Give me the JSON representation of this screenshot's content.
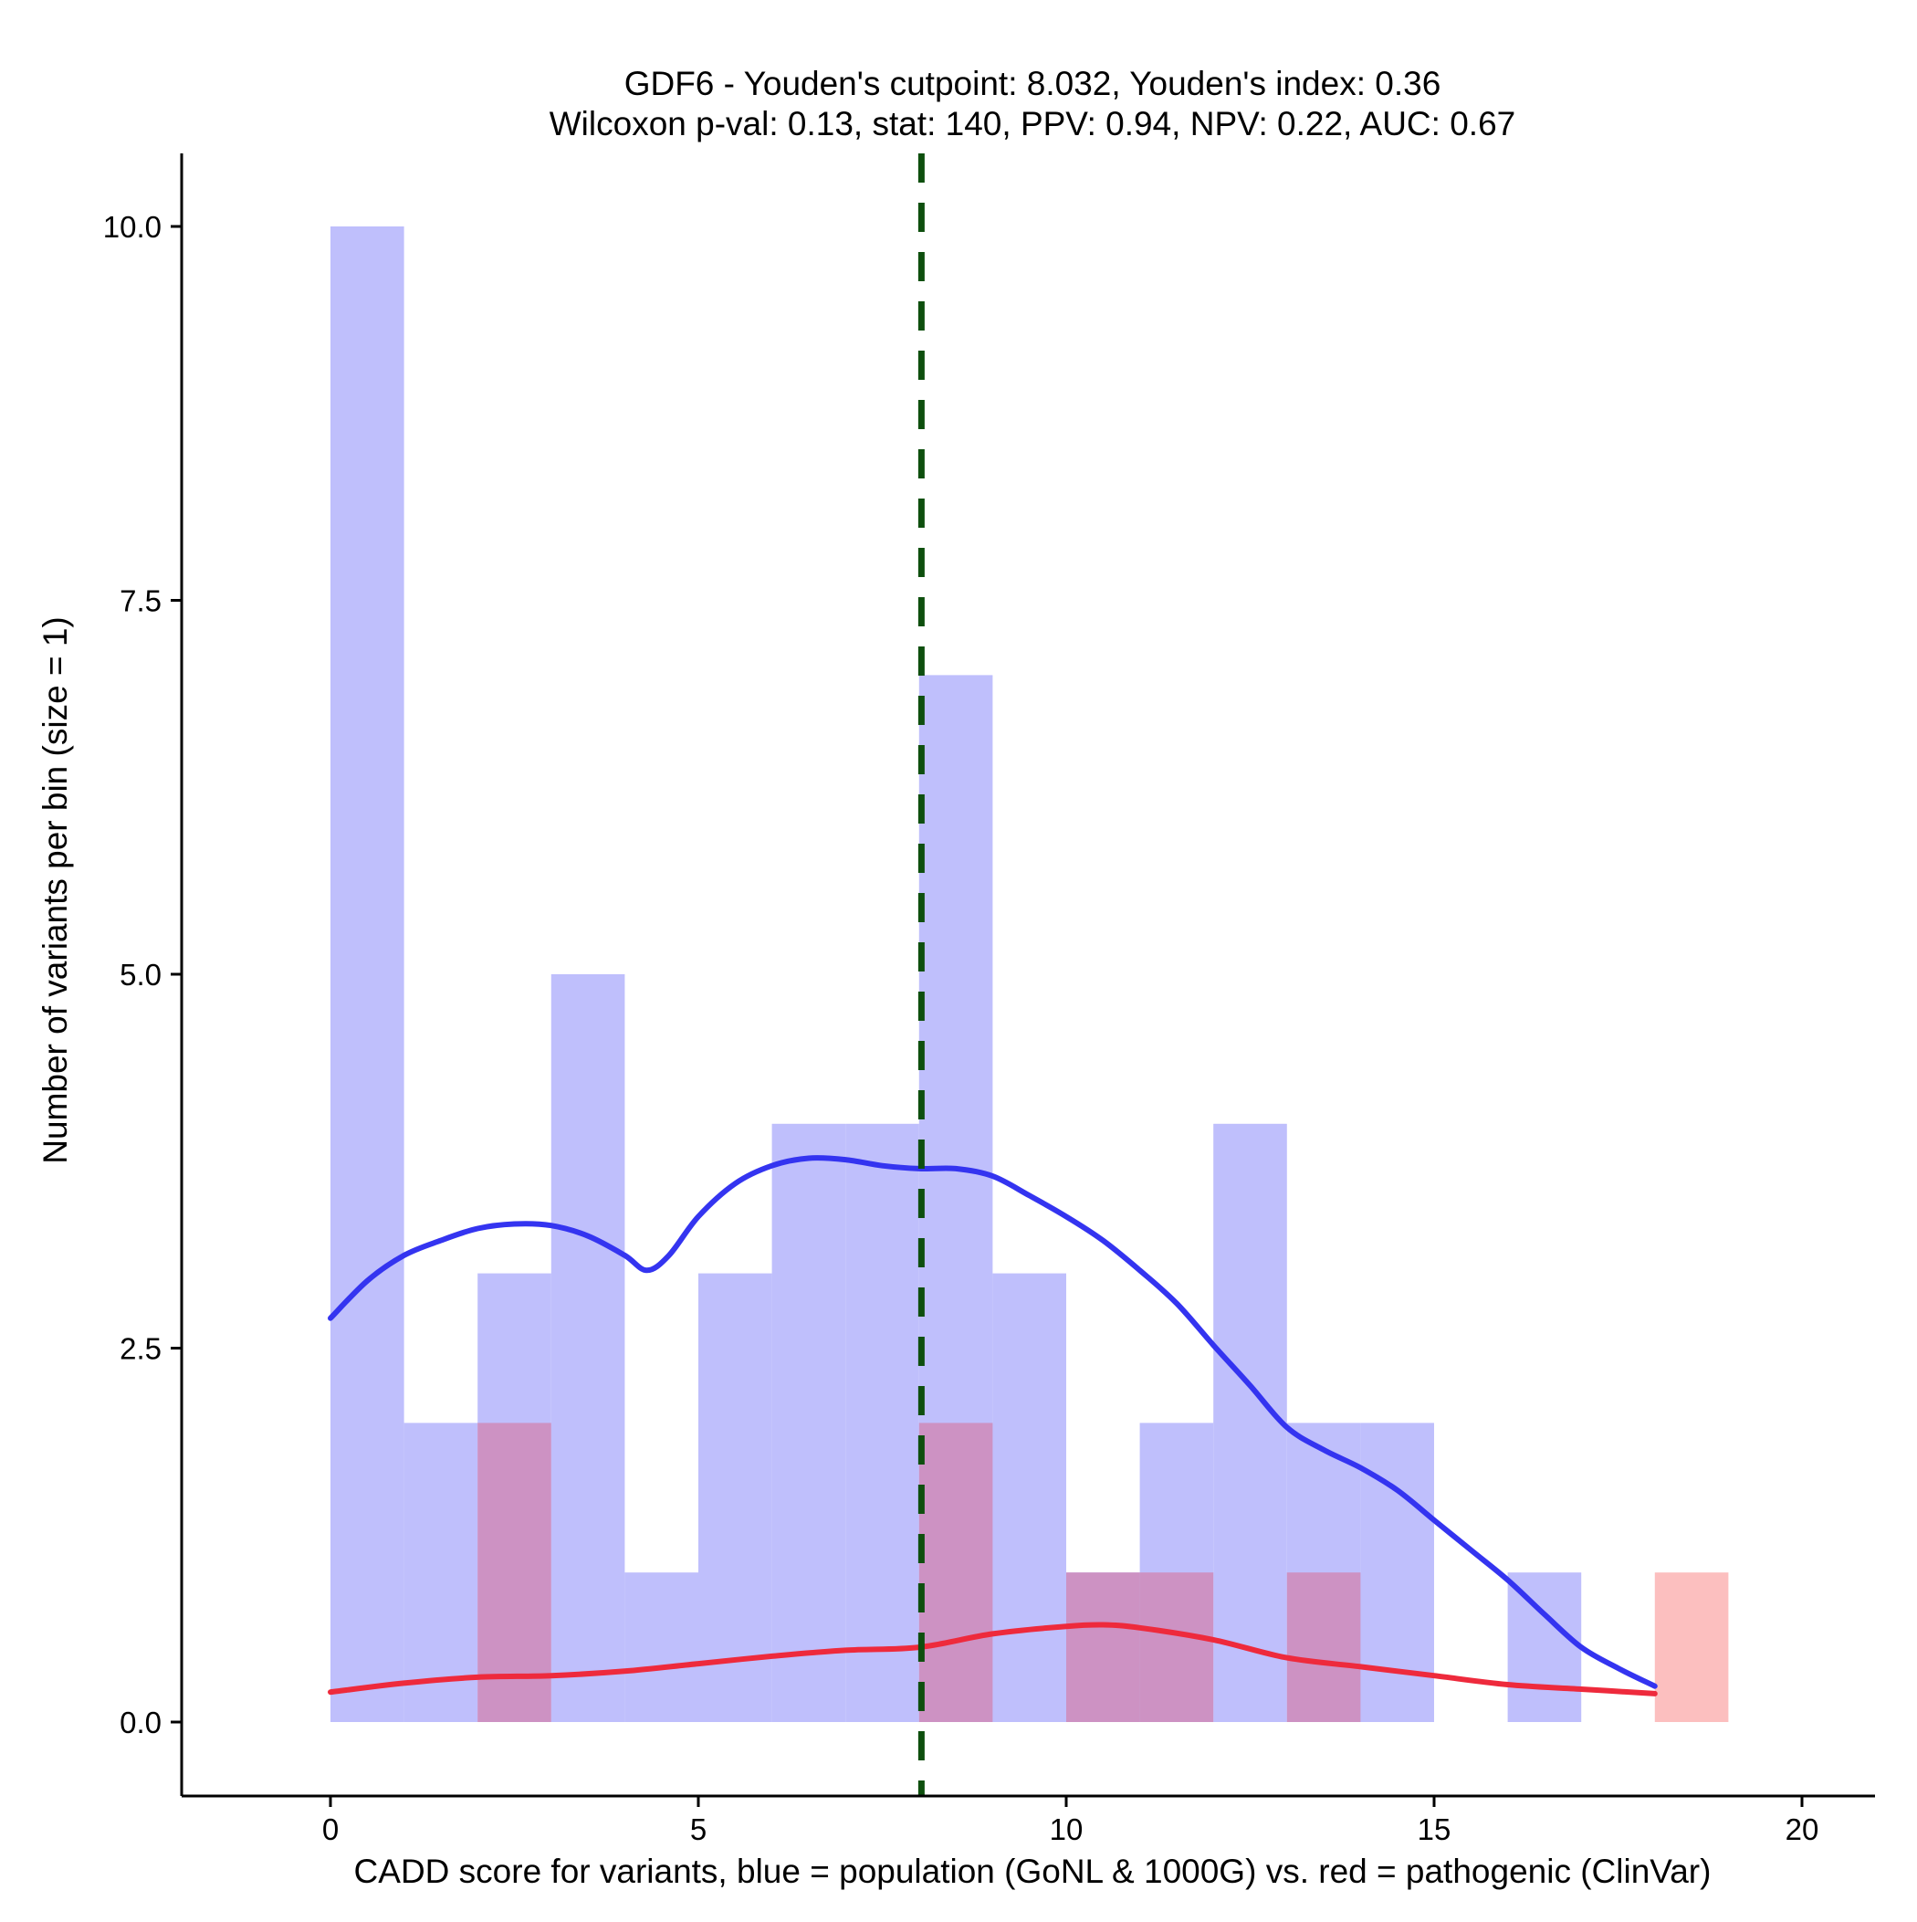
{
  "chart_data": {
    "type": "histogram",
    "title_line1": "GDF6 - Youden's cutpoint: 8.032, Youden's index: 0.36",
    "title_line2": "Wilcoxon p-val: 0.13, stat: 140, PPV: 0.94, NPV: 0.22, AUC: 0.67",
    "xlabel": "CADD score for variants, blue = population (GoNL & 1000G) vs. red = pathogenic (ClinVar)",
    "ylabel": "Number of variants per bin (size = 1)",
    "xlim": [
      -2,
      21
    ],
    "ylim": [
      -0.5,
      10.5
    ],
    "xticks": [
      0,
      5,
      10,
      15,
      20
    ],
    "xtick_labels": [
      "0",
      "5",
      "10",
      "15",
      "20"
    ],
    "yticks": [
      0,
      2.5,
      5,
      7.5,
      10
    ],
    "ytick_labels": [
      "0.0",
      "2.5",
      "5.0",
      "7.5",
      "10.0"
    ],
    "bin_size": 1,
    "cutpoint": 8.032,
    "colors": {
      "population_bar": "#bfbffc",
      "pathogenic_bar": "#fcbfbf",
      "overlap_bar": "#cd92c3",
      "population_line": "#3434f0",
      "pathogenic_line": "#ee2a3c",
      "cutpoint_line": "#0e4f0e"
    },
    "series": [
      {
        "name": "population (GoNL & 1000G)",
        "bins": [
          {
            "x0": 0,
            "count": 10
          },
          {
            "x0": 1,
            "count": 2
          },
          {
            "x0": 2,
            "count": 3
          },
          {
            "x0": 3,
            "count": 5
          },
          {
            "x0": 4,
            "count": 1
          },
          {
            "x0": 5,
            "count": 3
          },
          {
            "x0": 6,
            "count": 4
          },
          {
            "x0": 7,
            "count": 4
          },
          {
            "x0": 8,
            "count": 7
          },
          {
            "x0": 9,
            "count": 3
          },
          {
            "x0": 10,
            "count": 1
          },
          {
            "x0": 11,
            "count": 2
          },
          {
            "x0": 12,
            "count": 4
          },
          {
            "x0": 13,
            "count": 2
          },
          {
            "x0": 14,
            "count": 2
          },
          {
            "x0": 16,
            "count": 1
          }
        ]
      },
      {
        "name": "pathogenic (ClinVar)",
        "bins": [
          {
            "x0": 2,
            "count": 2
          },
          {
            "x0": 8,
            "count": 2
          },
          {
            "x0": 10,
            "count": 1
          },
          {
            "x0": 11,
            "count": 1
          },
          {
            "x0": 13,
            "count": 1
          },
          {
            "x0": 18,
            "count": 1
          }
        ]
      }
    ],
    "density_lines": [
      {
        "name": "population density",
        "x": [
          0,
          0.5,
          1,
          1.5,
          2,
          2.5,
          3,
          3.5,
          4,
          4.3,
          4.6,
          5,
          5.5,
          6,
          6.5,
          7,
          7.5,
          8,
          8.5,
          9,
          9.5,
          10,
          10.5,
          11,
          11.5,
          12,
          12.5,
          13,
          13.5,
          14,
          14.5,
          15,
          15.5,
          16,
          16.5,
          17,
          17.5,
          18
        ],
        "y": [
          2.7,
          2.95,
          3.12,
          3.22,
          3.3,
          3.33,
          3.32,
          3.25,
          3.12,
          3.02,
          3.12,
          3.38,
          3.6,
          3.72,
          3.77,
          3.76,
          3.72,
          3.7,
          3.7,
          3.65,
          3.52,
          3.38,
          3.22,
          3.02,
          2.8,
          2.52,
          2.25,
          1.97,
          1.82,
          1.7,
          1.55,
          1.35,
          1.15,
          0.95,
          0.72,
          0.5,
          0.36,
          0.24
        ]
      },
      {
        "name": "pathogenic density",
        "x": [
          0,
          1,
          2,
          3,
          4,
          5,
          6,
          7,
          8,
          9,
          10,
          10.5,
          11,
          12,
          13,
          14,
          15,
          16,
          17,
          18
        ],
        "y": [
          0.2,
          0.26,
          0.3,
          0.31,
          0.34,
          0.39,
          0.44,
          0.48,
          0.5,
          0.59,
          0.64,
          0.65,
          0.63,
          0.55,
          0.43,
          0.37,
          0.31,
          0.25,
          0.22,
          0.19
        ]
      }
    ]
  }
}
